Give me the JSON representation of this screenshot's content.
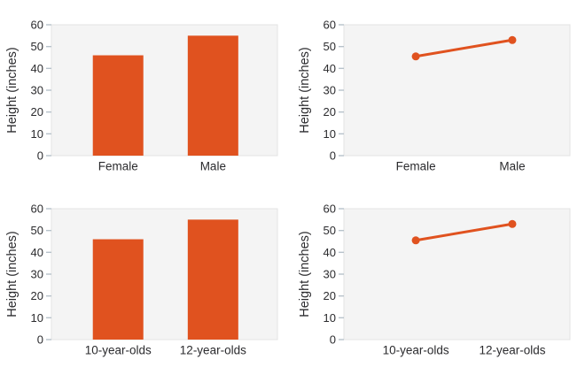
{
  "style": {
    "accent_orange": "#e0521f",
    "plot_background": "#f4f4f4",
    "plot_border": "#e3e3e3",
    "tick_mark_color": "#b7c2ca",
    "text_color": "#2b2b2e"
  },
  "chart_data": [
    {
      "type": "bar",
      "title": "",
      "categories": [
        "Female",
        "Male"
      ],
      "values": [
        46,
        55
      ],
      "ylabel": "Height (inches)",
      "xlabel": "",
      "ylim": [
        0,
        60
      ],
      "yticks": [
        0,
        10,
        20,
        30,
        40,
        50,
        60
      ],
      "grid": false,
      "legend": null,
      "series_color": "#e0521f"
    },
    {
      "type": "line",
      "title": "",
      "categories": [
        "Female",
        "Male"
      ],
      "values": [
        45.5,
        53
      ],
      "ylabel": "Height (inches)",
      "xlabel": "",
      "ylim": [
        0,
        60
      ],
      "yticks": [
        0,
        10,
        20,
        30,
        40,
        50,
        60
      ],
      "grid": false,
      "legend": null,
      "series_color": "#e0521f"
    },
    {
      "type": "bar",
      "title": "",
      "categories": [
        "10-year-olds",
        "12-year-olds"
      ],
      "values": [
        46,
        55
      ],
      "ylabel": "Height (inches)",
      "xlabel": "",
      "ylim": [
        0,
        60
      ],
      "yticks": [
        0,
        10,
        20,
        30,
        40,
        50,
        60
      ],
      "grid": false,
      "legend": null,
      "series_color": "#e0521f"
    },
    {
      "type": "line",
      "title": "",
      "categories": [
        "10-year-olds",
        "12-year-olds"
      ],
      "values": [
        45.5,
        53
      ],
      "ylabel": "Height (inches)",
      "xlabel": "",
      "ylim": [
        0,
        60
      ],
      "yticks": [
        0,
        10,
        20,
        30,
        40,
        50,
        60
      ],
      "grid": false,
      "legend": null,
      "series_color": "#e0521f"
    }
  ]
}
